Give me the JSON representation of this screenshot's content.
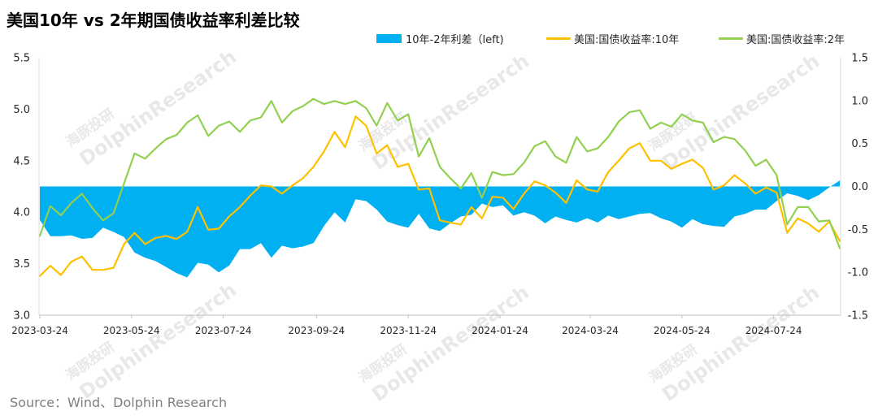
{
  "source": "Source：Wind、Dolphin Research",
  "watermark": {
    "cn": "海豚投研",
    "en": "DolphinResearch"
  },
  "chart_data": {
    "type": "line",
    "title": "美国10年 vs 2年期国债收益率利差比较",
    "legend": "top-right",
    "grid": false,
    "xlim": [
      "2023-03-24",
      "2024-09-06"
    ],
    "xticks": [
      "2023-03-24",
      "2023-05-24",
      "2023-07-24",
      "2023-09-24",
      "2023-11-24",
      "2024-01-24",
      "2024-03-24",
      "2024-05-24",
      "2024-07-24"
    ],
    "ylim_left": [
      3.0,
      5.5
    ],
    "yticks_left": [
      "3.0",
      "3.5",
      "4.0",
      "4.5",
      "5.0",
      "5.5"
    ],
    "ylim_right": [
      -1.5,
      1.5
    ],
    "yticks_right": [
      "-1.5",
      "-1.0",
      "-0.5",
      "0.0",
      "0.5",
      "1.0",
      "1.5"
    ],
    "x": [
      "2023-03-24",
      "2023-03-31",
      "2023-04-07",
      "2023-04-14",
      "2023-04-21",
      "2023-04-28",
      "2023-05-05",
      "2023-05-12",
      "2023-05-19",
      "2023-05-26",
      "2023-06-02",
      "2023-06-09",
      "2023-06-16",
      "2023-06-23",
      "2023-06-30",
      "2023-07-07",
      "2023-07-14",
      "2023-07-21",
      "2023-07-28",
      "2023-08-04",
      "2023-08-11",
      "2023-08-18",
      "2023-08-25",
      "2023-09-01",
      "2023-09-08",
      "2023-09-15",
      "2023-09-22",
      "2023-09-29",
      "2023-10-06",
      "2023-10-13",
      "2023-10-20",
      "2023-10-27",
      "2023-11-03",
      "2023-11-10",
      "2023-11-17",
      "2023-11-24",
      "2023-12-01",
      "2023-12-08",
      "2023-12-15",
      "2023-12-22",
      "2023-12-29",
      "2024-01-05",
      "2024-01-12",
      "2024-01-19",
      "2024-01-26",
      "2024-02-02",
      "2024-02-09",
      "2024-02-16",
      "2024-02-23",
      "2024-03-01",
      "2024-03-08",
      "2024-03-15",
      "2024-03-22",
      "2024-03-29",
      "2024-04-05",
      "2024-04-12",
      "2024-04-19",
      "2024-04-26",
      "2024-05-03",
      "2024-05-10",
      "2024-05-17",
      "2024-05-24",
      "2024-05-31",
      "2024-06-07",
      "2024-06-14",
      "2024-06-21",
      "2024-06-28",
      "2024-07-05",
      "2024-07-12",
      "2024-07-19",
      "2024-07-26",
      "2024-08-02",
      "2024-08-09",
      "2024-08-16",
      "2024-08-23",
      "2024-08-30",
      "2024-09-06"
    ],
    "series": [
      {
        "name": "10年-2年利差（left)",
        "type": "area",
        "axis": "right",
        "color": "#00B0F0",
        "values": [
          -0.39,
          -0.58,
          -0.58,
          -0.57,
          -0.61,
          -0.6,
          -0.48,
          -0.53,
          -0.59,
          -0.77,
          -0.83,
          -0.87,
          -0.94,
          -1.01,
          -1.06,
          -0.89,
          -0.91,
          -1.0,
          -0.92,
          -0.73,
          -0.73,
          -0.66,
          -0.83,
          -0.69,
          -0.72,
          -0.7,
          -0.66,
          -0.46,
          -0.3,
          -0.42,
          -0.15,
          -0.17,
          -0.27,
          -0.41,
          -0.45,
          -0.48,
          -0.32,
          -0.49,
          -0.52,
          -0.43,
          -0.35,
          -0.33,
          -0.2,
          -0.24,
          -0.22,
          -0.34,
          -0.3,
          -0.34,
          -0.43,
          -0.35,
          -0.39,
          -0.42,
          -0.37,
          -0.42,
          -0.34,
          -0.38,
          -0.35,
          -0.32,
          -0.31,
          -0.37,
          -0.41,
          -0.48,
          -0.38,
          -0.44,
          -0.46,
          -0.47,
          -0.35,
          -0.32,
          -0.27,
          -0.27,
          -0.17,
          -0.08,
          -0.11,
          -0.16,
          -0.1,
          -0.01,
          0.07
        ]
      },
      {
        "name": "美国:国债收益率:10年",
        "type": "line",
        "axis": "left",
        "color": "#FFC000",
        "values": [
          3.38,
          3.48,
          3.39,
          3.52,
          3.57,
          3.44,
          3.44,
          3.46,
          3.69,
          3.8,
          3.69,
          3.75,
          3.77,
          3.74,
          3.81,
          4.05,
          3.83,
          3.84,
          3.96,
          4.05,
          4.16,
          4.26,
          4.25,
          4.18,
          4.26,
          4.33,
          4.44,
          4.59,
          4.78,
          4.63,
          4.93,
          4.84,
          4.57,
          4.65,
          4.44,
          4.47,
          4.22,
          4.23,
          3.92,
          3.9,
          3.88,
          4.05,
          3.94,
          4.15,
          4.14,
          4.03,
          4.18,
          4.3,
          4.26,
          4.19,
          4.09,
          4.31,
          4.22,
          4.2,
          4.39,
          4.5,
          4.62,
          4.67,
          4.5,
          4.5,
          4.42,
          4.47,
          4.51,
          4.43,
          4.22,
          4.26,
          4.36,
          4.28,
          4.18,
          4.24,
          4.19,
          3.8,
          3.94,
          3.89,
          3.81,
          3.91,
          3.72
        ]
      },
      {
        "name": "美国:国债收益率:2年",
        "type": "line",
        "axis": "left",
        "color": "#92D050",
        "values": [
          3.77,
          4.06,
          3.97,
          4.09,
          4.18,
          4.04,
          3.92,
          3.99,
          4.28,
          4.57,
          4.52,
          4.62,
          4.71,
          4.75,
          4.87,
          4.94,
          4.74,
          4.84,
          4.88,
          4.78,
          4.89,
          4.92,
          5.08,
          4.87,
          4.98,
          5.03,
          5.1,
          5.05,
          5.08,
          5.05,
          5.08,
          5.01,
          4.84,
          5.06,
          4.89,
          4.95,
          4.54,
          4.72,
          4.44,
          4.33,
          4.23,
          4.38,
          4.14,
          4.39,
          4.36,
          4.37,
          4.48,
          4.64,
          4.69,
          4.54,
          4.48,
          4.73,
          4.59,
          4.62,
          4.73,
          4.88,
          4.97,
          4.99,
          4.81,
          4.87,
          4.83,
          4.95,
          4.89,
          4.87,
          4.68,
          4.73,
          4.71,
          4.6,
          4.45,
          4.51,
          4.36,
          3.88,
          4.05,
          4.05,
          3.91,
          3.92,
          3.65
        ]
      }
    ]
  }
}
